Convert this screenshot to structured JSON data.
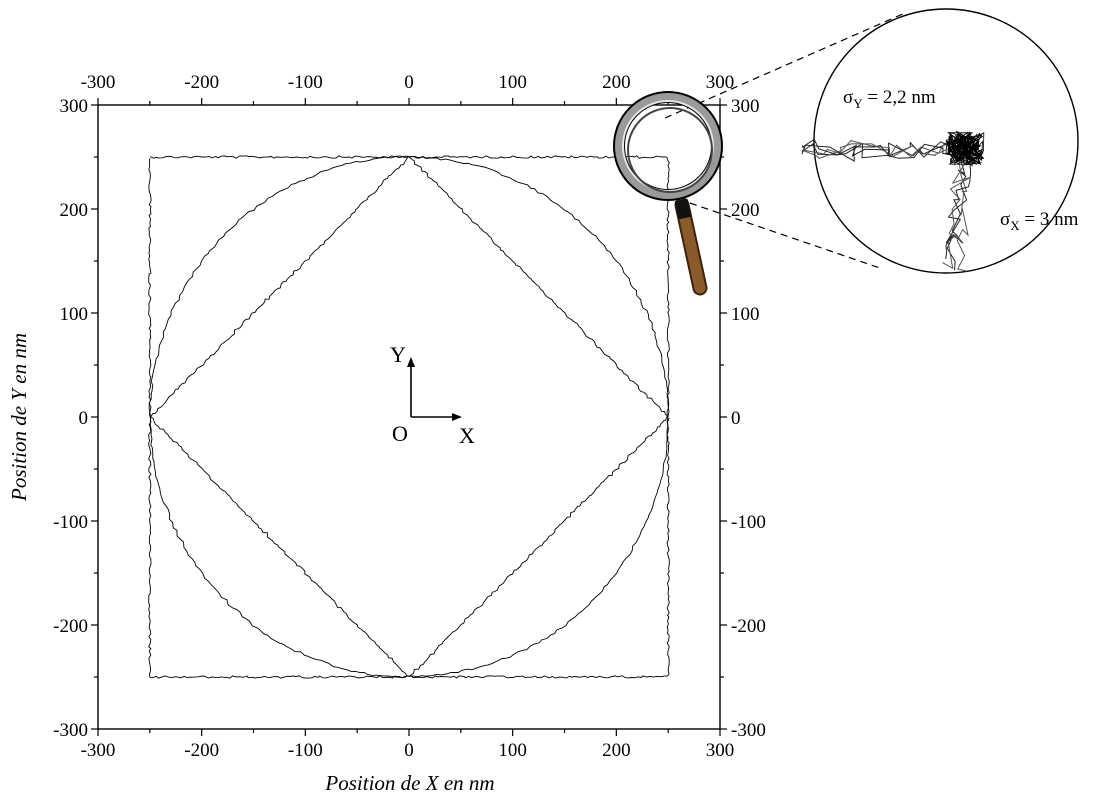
{
  "chart_data": {
    "type": "line",
    "xlabel": "Position de X en nm",
    "ylabel": "Position de Y en nm",
    "xlim": [
      -300,
      300
    ],
    "ylim": [
      -300,
      300
    ],
    "x_ticks": [
      -300,
      -200,
      -100,
      0,
      100,
      200,
      300
    ],
    "y_ticks": [
      -300,
      -200,
      -100,
      0,
      100,
      200,
      300
    ],
    "grid": false,
    "series": [
      {
        "shape": "square",
        "x": [
          -250,
          250,
          250,
          -250,
          -250
        ],
        "y": [
          250,
          250,
          -250,
          -250,
          250
        ]
      },
      {
        "shape": "diamond",
        "x": [
          0,
          250,
          0,
          -250,
          0
        ],
        "y": [
          250,
          0,
          -250,
          0,
          250
        ]
      },
      {
        "shape": "circle",
        "center": [
          0,
          0
        ],
        "radius": 250
      }
    ],
    "annotations": {
      "origin_label": "O",
      "x_axis_label": "X",
      "y_axis_label": "Y",
      "sigma_y": {
        "label": "σ",
        "subscript": "Y",
        "value": " = 2,2 nm"
      },
      "sigma_x": {
        "label": "σ",
        "subscript": "X",
        "value": " = 3 nm"
      },
      "zoom_point": [
        250,
        250
      ]
    }
  }
}
